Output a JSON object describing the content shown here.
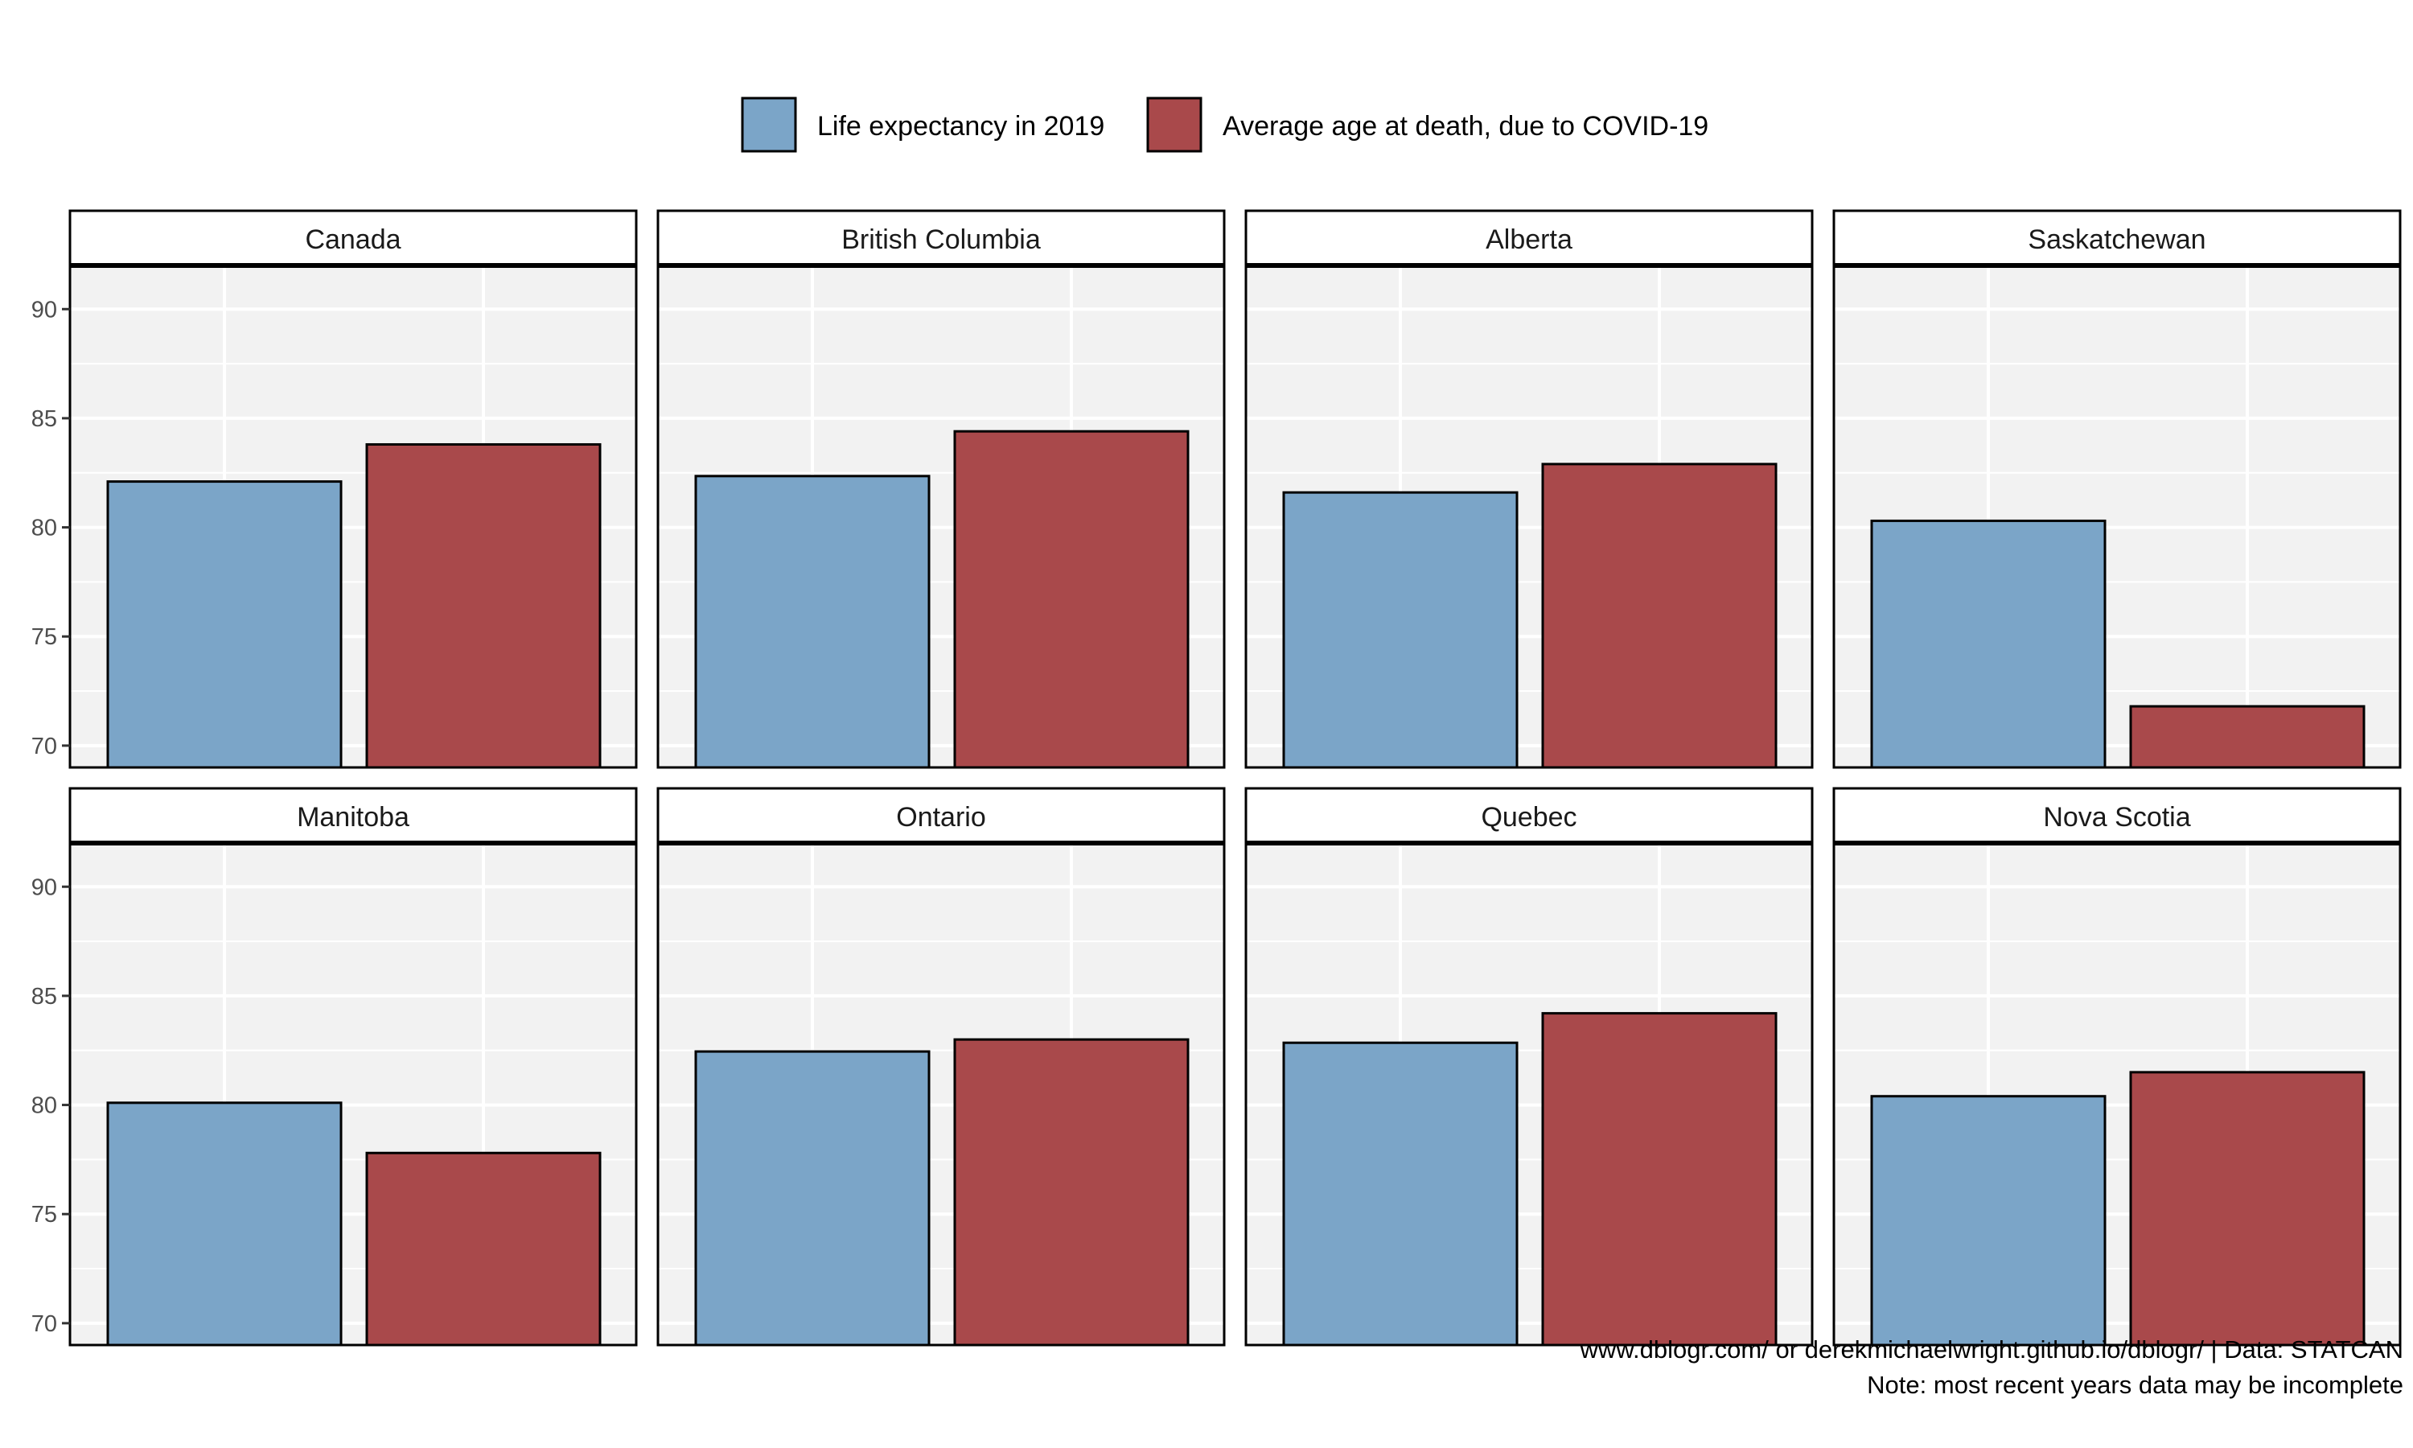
{
  "chart_data": {
    "type": "bar",
    "layout": "facet-grid 2 rows x 4 columns",
    "legend_position": "top",
    "grid": true,
    "ylim": [
      69,
      92
    ],
    "yticks": [
      70,
      75,
      80,
      85,
      90
    ],
    "ytick_labels": [
      "70",
      "75",
      "80",
      "85",
      "90"
    ],
    "legend": [
      {
        "label": "Life expectancy in 2019",
        "color": "#7BA5C8"
      },
      {
        "label": "Average age at death, due to COVID-19",
        "color": "#A9494B"
      }
    ],
    "series": [
      {
        "name": "Life expectancy in 2019",
        "color": "#7BA5C8"
      },
      {
        "name": "Average age at death, due to COVID-19",
        "color": "#A9494B"
      }
    ],
    "panels": [
      {
        "title": "Canada",
        "values": [
          82.1,
          83.8
        ]
      },
      {
        "title": "British Columbia",
        "values": [
          82.35,
          84.4
        ]
      },
      {
        "title": "Alberta",
        "values": [
          81.6,
          82.9
        ]
      },
      {
        "title": "Saskatchewan",
        "values": [
          80.3,
          71.8
        ]
      },
      {
        "title": "Manitoba",
        "values": [
          80.1,
          77.8
        ]
      },
      {
        "title": "Ontario",
        "values": [
          82.45,
          83.0
        ]
      },
      {
        "title": "Quebec",
        "values": [
          82.85,
          84.2
        ]
      },
      {
        "title": "Nova Scotia",
        "values": [
          80.4,
          81.5
        ]
      }
    ],
    "caption": [
      "www.dblogr.com/ or derekmichaelwright.github.io/dblogr/ | Data: STATCAN",
      "Note: most recent years data may be incomplete"
    ]
  }
}
